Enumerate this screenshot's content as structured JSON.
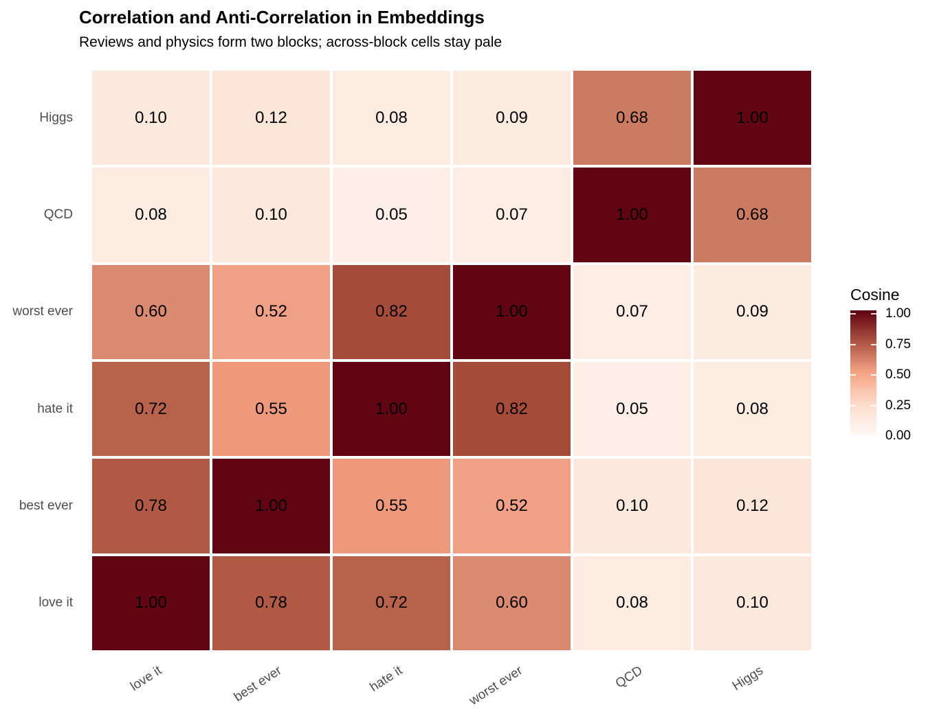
{
  "title": "Correlation and Anti-Correlation in Embeddings",
  "subtitle": "Reviews and physics form two blocks; across-block cells stay pale",
  "chart_data": {
    "type": "heatmap",
    "title": "Correlation and Anti-Correlation in Embeddings",
    "subtitle": "Reviews and physics form two blocks; across-block cells stay pale",
    "x_categories": [
      "love it",
      "best ever",
      "hate it",
      "worst ever",
      "QCD",
      "Higgs"
    ],
    "y_categories": [
      "Higgs",
      "QCD",
      "worst ever",
      "hate it",
      "best ever",
      "love it"
    ],
    "values": [
      [
        0.1,
        0.12,
        0.08,
        0.09,
        0.68,
        1.0
      ],
      [
        0.08,
        0.1,
        0.05,
        0.07,
        1.0,
        0.68
      ],
      [
        0.6,
        0.52,
        0.82,
        1.0,
        0.07,
        0.09
      ],
      [
        0.72,
        0.55,
        1.0,
        0.82,
        0.05,
        0.08
      ],
      [
        0.78,
        1.0,
        0.55,
        0.52,
        0.1,
        0.12
      ],
      [
        1.0,
        0.78,
        0.72,
        0.6,
        0.08,
        0.1
      ]
    ],
    "value_range": [
      0,
      1
    ],
    "grid": false,
    "gap_color": "#ffffff",
    "cell_text_color": "#000000",
    "axis_text_color": "#4d4d4d",
    "x_label_rotation_deg": -33,
    "value_colors": {
      "0.05": "#fdefe8",
      "0.07": "#fdede4",
      "0.08": "#fdece2",
      "0.09": "#fcebe1",
      "0.10": "#fce9de",
      "0.12": "#fce6d9",
      "0.52": "#f0a084",
      "0.55": "#ee997c",
      "0.60": "#da8a70",
      "0.68": "#cb7b62",
      "0.72": "#b7634c",
      "0.78": "#b05944",
      "0.82": "#a44b3a",
      "1.00": "#600511"
    },
    "legend": {
      "title": "Cosine",
      "position": "right",
      "tick_labels": [
        "1.00",
        "0.75",
        "0.50",
        "0.25",
        "0.00"
      ],
      "tick_values": [
        1.0,
        0.75,
        0.5,
        0.25,
        0.0
      ],
      "gradient_stops": [
        {
          "value": 0.0,
          "color": "#fffaf7"
        },
        {
          "value": 0.25,
          "color": "#fcdccb"
        },
        {
          "value": 0.5,
          "color": "#f5a585"
        },
        {
          "value": 0.75,
          "color": "#ad5444"
        },
        {
          "value": 1.0,
          "color": "#5d0210"
        }
      ]
    }
  }
}
